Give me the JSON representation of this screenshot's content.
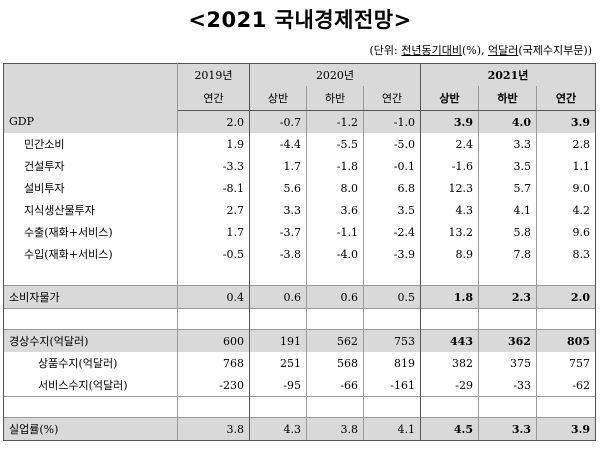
{
  "title": "<2021 국내경제전망>",
  "unit": {
    "prefix": "(단위: ",
    "part1": "전년동기대비",
    "part1_suffix": "(%), ",
    "part2": "억달러",
    "part2_suffix": "(국제수지부문))"
  },
  "header": {
    "years": [
      "2019년",
      "2020년",
      "2021년"
    ],
    "periods": [
      "연간",
      "상반",
      "하반",
      "연간",
      "상반",
      "하반",
      "연간"
    ]
  },
  "rows": [
    {
      "label": "GDP",
      "values": [
        "2.0",
        "-0.7",
        "-1.2",
        "-1.0",
        "3.9",
        "4.0",
        "3.9"
      ]
    },
    {
      "label": "민간소비",
      "values": [
        "1.9",
        "-4.4",
        "-5.5",
        "-5.0",
        "2.4",
        "3.3",
        "2.8"
      ]
    },
    {
      "label": "건설투자",
      "values": [
        "-3.3",
        "1.7",
        "-1.8",
        "-0.1",
        "-1.6",
        "3.5",
        "1.1"
      ]
    },
    {
      "label": "설비투자",
      "values": [
        "-8.1",
        "5.6",
        "8.0",
        "6.8",
        "12.3",
        "5.7",
        "9.0"
      ]
    },
    {
      "label": "지식생산물투자",
      "values": [
        "2.7",
        "3.3",
        "3.6",
        "3.5",
        "4.3",
        "4.1",
        "4.2"
      ]
    },
    {
      "label": "수출(재화+서비스)",
      "values": [
        "1.7",
        "-3.7",
        "-1.1",
        "-2.4",
        "13.2",
        "5.8",
        "9.6"
      ]
    },
    {
      "label": "수입(재화+서비스)",
      "values": [
        "-0.5",
        "-3.8",
        "-4.0",
        "-3.9",
        "8.9",
        "7.8",
        "8.3"
      ]
    },
    {
      "label": "소비자물가",
      "values": [
        "0.4",
        "0.6",
        "0.6",
        "0.5",
        "1.8",
        "2.3",
        "2.0"
      ]
    },
    {
      "label": "경상수지(억달러)",
      "values": [
        "600",
        "191",
        "562",
        "753",
        "443",
        "362",
        "805"
      ]
    },
    {
      "label": "상품수지(억달러)",
      "values": [
        "768",
        "251",
        "568",
        "819",
        "382",
        "375",
        "757"
      ]
    },
    {
      "label": "서비스수지(억달러)",
      "values": [
        "-230",
        "-95",
        "-66",
        "-161",
        "-29",
        "-33",
        "-62"
      ]
    },
    {
      "label": "실업률(%)",
      "values": [
        "3.8",
        "4.3",
        "3.8",
        "4.1",
        "4.5",
        "3.3",
        "3.9"
      ]
    }
  ]
}
